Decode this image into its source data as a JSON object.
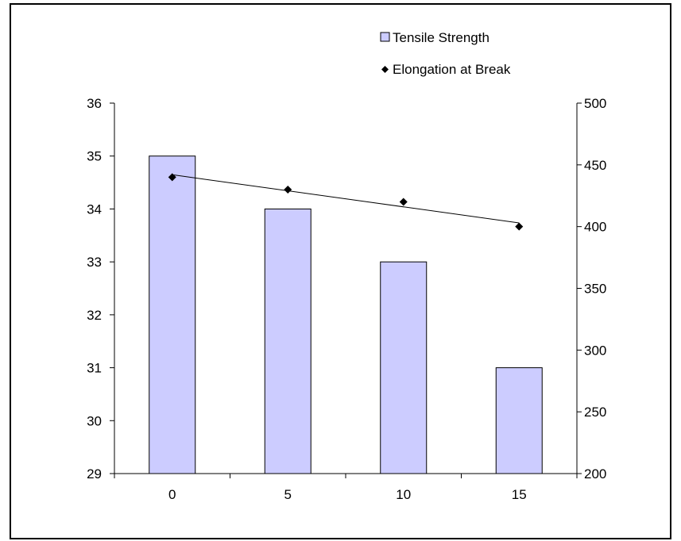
{
  "chart_data": {
    "type": "bar",
    "categories": [
      "0",
      "5",
      "10",
      "15"
    ],
    "series": [
      {
        "name": "Tensile Strength",
        "type": "bar",
        "axis": "left",
        "color": "#ccccff",
        "values": [
          35,
          34,
          33,
          31
        ]
      },
      {
        "name": "Elongation at Break",
        "type": "scatter",
        "axis": "right",
        "color": "#000000",
        "marker": "diamond",
        "values": [
          440,
          430,
          420,
          400
        ]
      }
    ],
    "trendline": {
      "series": "Elongation at Break",
      "type": "linear"
    },
    "y_left": {
      "min": 29,
      "max": 36,
      "ticks": [
        "29",
        "30",
        "31",
        "32",
        "33",
        "34",
        "35",
        "36"
      ]
    },
    "y_right": {
      "min": 200,
      "max": 500,
      "ticks": [
        "200",
        "250",
        "300",
        "350",
        "400",
        "450",
        "500"
      ]
    },
    "legend_position": "top-right",
    "grid": false
  }
}
